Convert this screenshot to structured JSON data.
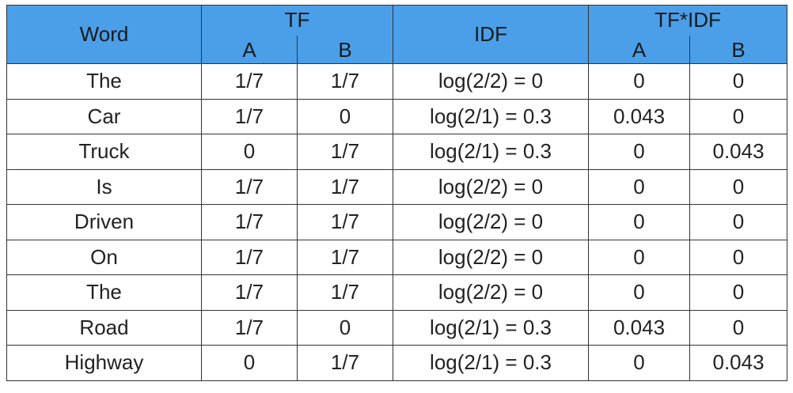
{
  "headers": {
    "word": "Word",
    "tf": "TF",
    "idf": "IDF",
    "tfidf": "TF*IDF",
    "sub_a": "A",
    "sub_b": "B"
  },
  "rows": [
    {
      "word": "The",
      "tf_a": "1/7",
      "tf_b": "1/7",
      "idf": "log(2/2) = 0",
      "tfidf_a": "0",
      "tfidf_b": "0"
    },
    {
      "word": "Car",
      "tf_a": "1/7",
      "tf_b": "0",
      "idf": "log(2/1) = 0.3",
      "tfidf_a": "0.043",
      "tfidf_b": "0"
    },
    {
      "word": "Truck",
      "tf_a": "0",
      "tf_b": "1/7",
      "idf": "log(2/1) = 0.3",
      "tfidf_a": "0",
      "tfidf_b": "0.043"
    },
    {
      "word": "Is",
      "tf_a": "1/7",
      "tf_b": "1/7",
      "idf": "log(2/2) = 0",
      "tfidf_a": "0",
      "tfidf_b": "0"
    },
    {
      "word": "Driven",
      "tf_a": "1/7",
      "tf_b": "1/7",
      "idf": "log(2/2) = 0",
      "tfidf_a": "0",
      "tfidf_b": "0"
    },
    {
      "word": "On",
      "tf_a": "1/7",
      "tf_b": "1/7",
      "idf": "log(2/2) = 0",
      "tfidf_a": "0",
      "tfidf_b": "0"
    },
    {
      "word": "The",
      "tf_a": "1/7",
      "tf_b": "1/7",
      "idf": "log(2/2) = 0",
      "tfidf_a": "0",
      "tfidf_b": "0"
    },
    {
      "word": "Road",
      "tf_a": "1/7",
      "tf_b": "0",
      "idf": "log(2/1) = 0.3",
      "tfidf_a": "0.043",
      "tfidf_b": "0"
    },
    {
      "word": "Highway",
      "tf_a": "0",
      "tf_b": "1/7",
      "idf": "log(2/1) = 0.3",
      "tfidf_a": "0",
      "tfidf_b": "0.043"
    }
  ],
  "colors": {
    "header_background": "#4a9fe8",
    "border": "#333333"
  }
}
